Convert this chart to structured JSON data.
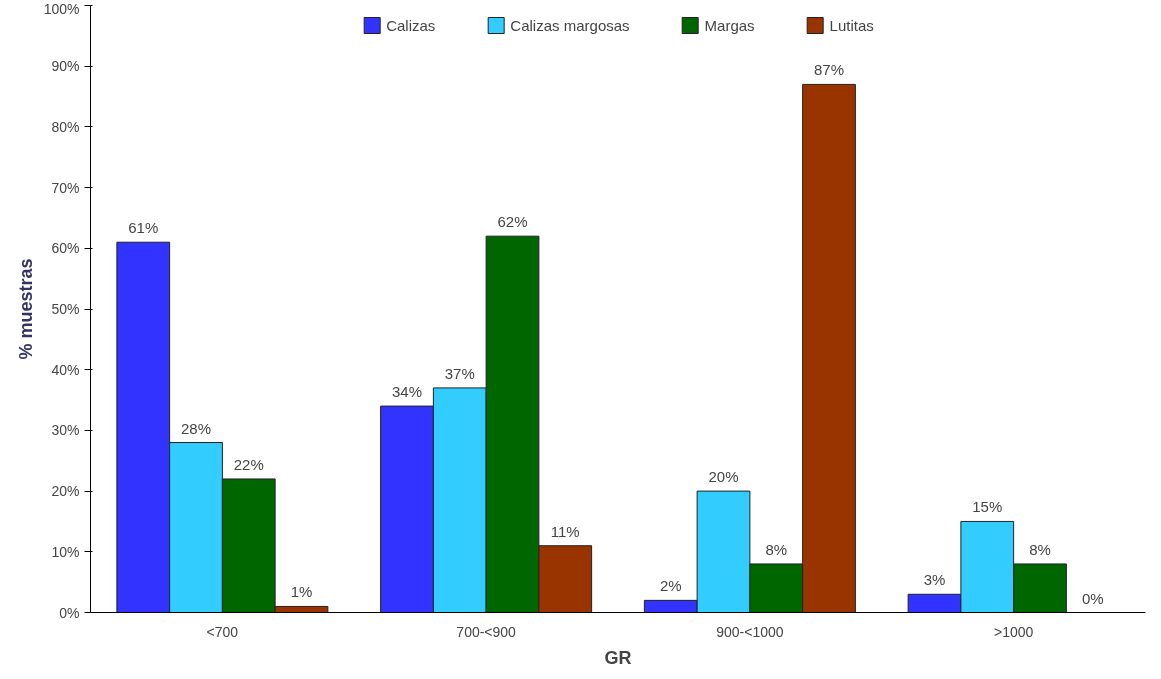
{
  "chart_data": {
    "type": "bar",
    "xlabel": "GR",
    "ylabel": "% muestras",
    "categories": [
      "<700",
      "700-<900",
      "900-<1000",
      ">1000"
    ],
    "series": [
      {
        "name": "Calizas",
        "color": "#3333ff",
        "values": [
          61,
          34,
          2,
          3
        ],
        "value_labels": [
          "61%",
          "34%",
          "2%",
          "3%"
        ]
      },
      {
        "name": "Calizas margosas",
        "color": "#33ccff",
        "values": [
          28,
          37,
          20,
          15
        ],
        "value_labels": [
          "28%",
          "37%",
          "20%",
          "15%"
        ]
      },
      {
        "name": "Margas",
        "color": "#006600",
        "values": [
          22,
          62,
          8,
          8
        ],
        "value_labels": [
          "22%",
          "62%",
          "8%",
          "8%"
        ]
      },
      {
        "name": "Lutitas",
        "color": "#993300",
        "values": [
          1,
          11,
          87,
          0
        ],
        "value_labels": [
          "1%",
          "11%",
          "87%",
          "0%"
        ]
      }
    ],
    "ylim": [
      0,
      100
    ],
    "yticks": [
      {
        "value": 0,
        "label": "0%"
      },
      {
        "value": 10,
        "label": "10%"
      },
      {
        "value": 20,
        "label": "20%"
      },
      {
        "value": 30,
        "label": "30%"
      },
      {
        "value": 40,
        "label": "40%"
      },
      {
        "value": 50,
        "label": "50%"
      },
      {
        "value": 60,
        "label": "60%"
      },
      {
        "value": 70,
        "label": "70%"
      },
      {
        "value": 80,
        "label": "80%"
      },
      {
        "value": 90,
        "label": "90%"
      },
      {
        "value": 100,
        "label": "100%"
      }
    ],
    "grid": false,
    "legend": "top"
  }
}
